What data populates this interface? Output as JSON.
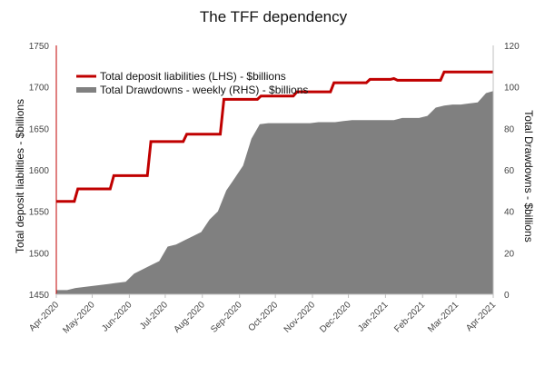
{
  "chart_data": {
    "type": "line+area",
    "title": "The TFF dependency",
    "ylabel_left": "Total deposit liabilities - $billions",
    "ylabel_right": "Total Drawdowns - $billions",
    "ylim_left": [
      1450,
      1750
    ],
    "ylim_right": [
      0,
      120
    ],
    "yticks_left": [
      1450,
      1500,
      1550,
      1600,
      1650,
      1700,
      1750
    ],
    "yticks_right": [
      0,
      20,
      40,
      60,
      80,
      100,
      120
    ],
    "xlim": [
      "2020-04-01",
      "2021-04-01"
    ],
    "x_ticks": [
      {
        "date": "2020-04-01",
        "label": "Apr-2020"
      },
      {
        "date": "2020-05-01",
        "label": "May-2020"
      },
      {
        "date": "2020-06-01",
        "label": "Jun-2020"
      },
      {
        "date": "2020-07-01",
        "label": "Jul-2020"
      },
      {
        "date": "2020-08-01",
        "label": "Aug-2020"
      },
      {
        "date": "2020-09-01",
        "label": "Sep-2020"
      },
      {
        "date": "2020-10-01",
        "label": "Oct-2020"
      },
      {
        "date": "2020-11-01",
        "label": "Nov-2020"
      },
      {
        "date": "2020-12-01",
        "label": "Dec-2020"
      },
      {
        "date": "2021-01-01",
        "label": "Jan-2021"
      },
      {
        "date": "2021-02-01",
        "label": "Feb-2021"
      },
      {
        "date": "2021-03-01",
        "label": "Mar-2021"
      },
      {
        "date": "2021-04-01",
        "label": "Apr-2021"
      }
    ],
    "legend_position": "top-left",
    "series": [
      {
        "name": "Total deposit liabilities (LHS) - $billions",
        "type": "step-line",
        "axis": "left",
        "color": "#c00000",
        "points": [
          [
            "2020-04-01",
            1562
          ],
          [
            "2020-04-16",
            1562
          ],
          [
            "2020-04-19",
            1577
          ],
          [
            "2020-05-16",
            1577
          ],
          [
            "2020-05-19",
            1593
          ],
          [
            "2020-06-16",
            1593
          ],
          [
            "2020-06-19",
            1634
          ],
          [
            "2020-07-16",
            1634
          ],
          [
            "2020-07-19",
            1643
          ],
          [
            "2020-08-16",
            1643
          ],
          [
            "2020-08-19",
            1685
          ],
          [
            "2020-09-16",
            1685
          ],
          [
            "2020-09-19",
            1689
          ],
          [
            "2020-10-16",
            1689
          ],
          [
            "2020-10-19",
            1694
          ],
          [
            "2020-11-16",
            1694
          ],
          [
            "2020-11-19",
            1705
          ],
          [
            "2020-12-16",
            1705
          ],
          [
            "2020-12-19",
            1709
          ],
          [
            "2021-01-05",
            1709
          ],
          [
            "2021-01-08",
            1710
          ],
          [
            "2021-01-11",
            1708
          ],
          [
            "2021-02-16",
            1708
          ],
          [
            "2021-02-19",
            1718
          ],
          [
            "2021-04-01",
            1718
          ]
        ]
      },
      {
        "name": "Total Drawdowns - weekly (RHS) - $billions",
        "type": "area",
        "axis": "right",
        "color": "#808080",
        "points": [
          [
            "2020-04-01",
            2
          ],
          [
            "2020-04-10",
            2
          ],
          [
            "2020-04-17",
            3
          ],
          [
            "2020-04-24",
            3.5
          ],
          [
            "2020-05-01",
            4
          ],
          [
            "2020-05-08",
            4.5
          ],
          [
            "2020-05-15",
            5
          ],
          [
            "2020-05-22",
            5.5
          ],
          [
            "2020-05-29",
            6
          ],
          [
            "2020-06-05",
            10
          ],
          [
            "2020-06-12",
            12
          ],
          [
            "2020-06-19",
            14
          ],
          [
            "2020-06-26",
            16
          ],
          [
            "2020-07-03",
            23
          ],
          [
            "2020-07-10",
            24
          ],
          [
            "2020-07-17",
            26
          ],
          [
            "2020-07-24",
            28
          ],
          [
            "2020-07-31",
            30
          ],
          [
            "2020-08-07",
            36
          ],
          [
            "2020-08-14",
            40
          ],
          [
            "2020-08-21",
            50
          ],
          [
            "2020-08-28",
            56
          ],
          [
            "2020-09-04",
            62
          ],
          [
            "2020-09-11",
            75
          ],
          [
            "2020-09-18",
            82
          ],
          [
            "2020-09-25",
            82.5
          ],
          [
            "2020-10-02",
            82.5
          ],
          [
            "2020-10-09",
            82.5
          ],
          [
            "2020-10-16",
            82.5
          ],
          [
            "2020-10-23",
            82.5
          ],
          [
            "2020-10-30",
            82.5
          ],
          [
            "2020-11-06",
            83
          ],
          [
            "2020-11-13",
            83
          ],
          [
            "2020-11-20",
            83
          ],
          [
            "2020-11-27",
            83.5
          ],
          [
            "2020-12-04",
            84
          ],
          [
            "2020-12-11",
            84
          ],
          [
            "2020-12-18",
            84
          ],
          [
            "2020-12-25",
            84
          ],
          [
            "2021-01-01",
            84
          ],
          [
            "2021-01-08",
            84
          ],
          [
            "2021-01-15",
            85
          ],
          [
            "2021-01-22",
            85
          ],
          [
            "2021-01-29",
            85
          ],
          [
            "2021-02-05",
            86
          ],
          [
            "2021-02-12",
            90
          ],
          [
            "2021-02-19",
            91
          ],
          [
            "2021-02-26",
            91.5
          ],
          [
            "2021-03-05",
            91.5
          ],
          [
            "2021-03-12",
            92
          ],
          [
            "2021-03-19",
            92.5
          ],
          [
            "2021-03-26",
            97
          ],
          [
            "2021-04-01",
            98
          ]
        ]
      }
    ]
  }
}
